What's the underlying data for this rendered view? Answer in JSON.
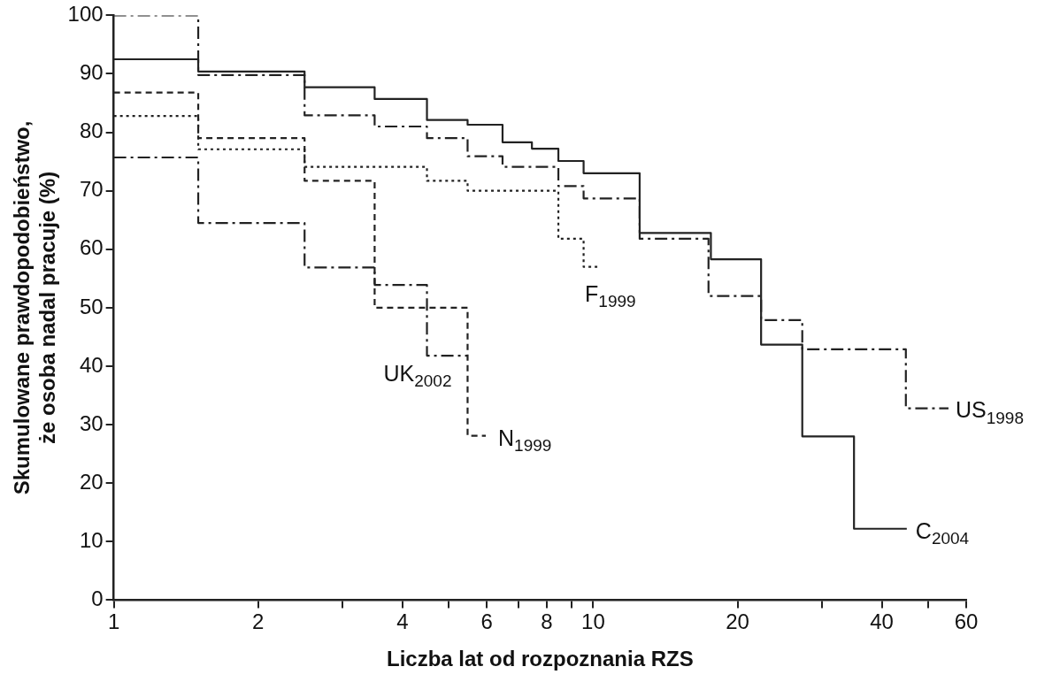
{
  "chart_data": {
    "type": "step",
    "xlabel": "Liczba lat od rozpoznania RZS",
    "ylabel": "Skumulowane prawdopodobieństwo,\nże osoba nadal pracuje (%)",
    "log": "x",
    "grid": false,
    "xlim": [
      1,
      60
    ],
    "ylim": [
      0,
      100
    ],
    "xticks": [
      1,
      2,
      {
        "value": 3,
        "label": null
      },
      4,
      {
        "value": 5,
        "label": null
      },
      6,
      {
        "value": 7,
        "label": null
      },
      8,
      {
        "value": 9,
        "label": null
      },
      10,
      20,
      {
        "value": 30,
        "label": null
      },
      40,
      {
        "value": 50,
        "label": null
      },
      60
    ],
    "yticks": [
      0,
      10,
      20,
      30,
      40,
      50,
      60,
      70,
      80,
      90,
      100
    ],
    "series": [
      {
        "name": "C$_{2004}$",
        "color": "#222222",
        "line_style": "solid",
        "x": [
          1,
          1.5,
          2.5,
          3.5,
          4.5,
          5.47,
          6.47,
          7.45,
          8.46,
          9.55,
          12.5,
          17.6,
          22.4,
          27.3,
          35,
          45.1
        ],
        "values": [
          92.5,
          90.4,
          87.7,
          85.7,
          82.1,
          81.3,
          78.3,
          77.2,
          75.1,
          73,
          62.8,
          58.3,
          43.7,
          28,
          12.2,
          12.2
        ]
      },
      {
        "name": "US$_{1998}$",
        "color": "#222222",
        "line_style": "dashdot",
        "x": [
          1,
          1.5,
          2.5,
          3.5,
          4.5,
          5.47,
          6.47,
          8.46,
          9.55,
          12.5,
          17.4,
          22.4,
          27.3,
          44.9,
          55.1
        ],
        "values": [
          100,
          89.8,
          82.9,
          81,
          79,
          75.9,
          74.1,
          70.8,
          68.7,
          61.8,
          52,
          47.9,
          42.9,
          32.8,
          32.8
        ]
      },
      {
        "name": "F$_{1999}$",
        "color": "#222222",
        "line_style": "dotted",
        "x": [
          1,
          1.5,
          2.5,
          4.5,
          5.47,
          8.46,
          9.55,
          10.2
        ],
        "values": [
          82.8,
          77.1,
          74.1,
          71.7,
          70,
          61.8,
          57,
          57
        ]
      },
      {
        "name": "N$_{1999}$",
        "color": "#222222",
        "line_style": "dashed",
        "x": [
          1,
          1.5,
          2.5,
          3.5,
          5.47,
          5.97
        ],
        "values": [
          86.8,
          79,
          71.7,
          50,
          28.1,
          28.1
        ]
      },
      {
        "name": "UK$_{2002}$",
        "color": "#222222",
        "line_style": "dashdot",
        "x": [
          1,
          1.5,
          2.5,
          3.5,
          4.5,
          5.47
        ],
        "values": [
          75.7,
          64.5,
          56.9,
          53.9,
          41.8,
          41.8
        ]
      }
    ]
  }
}
